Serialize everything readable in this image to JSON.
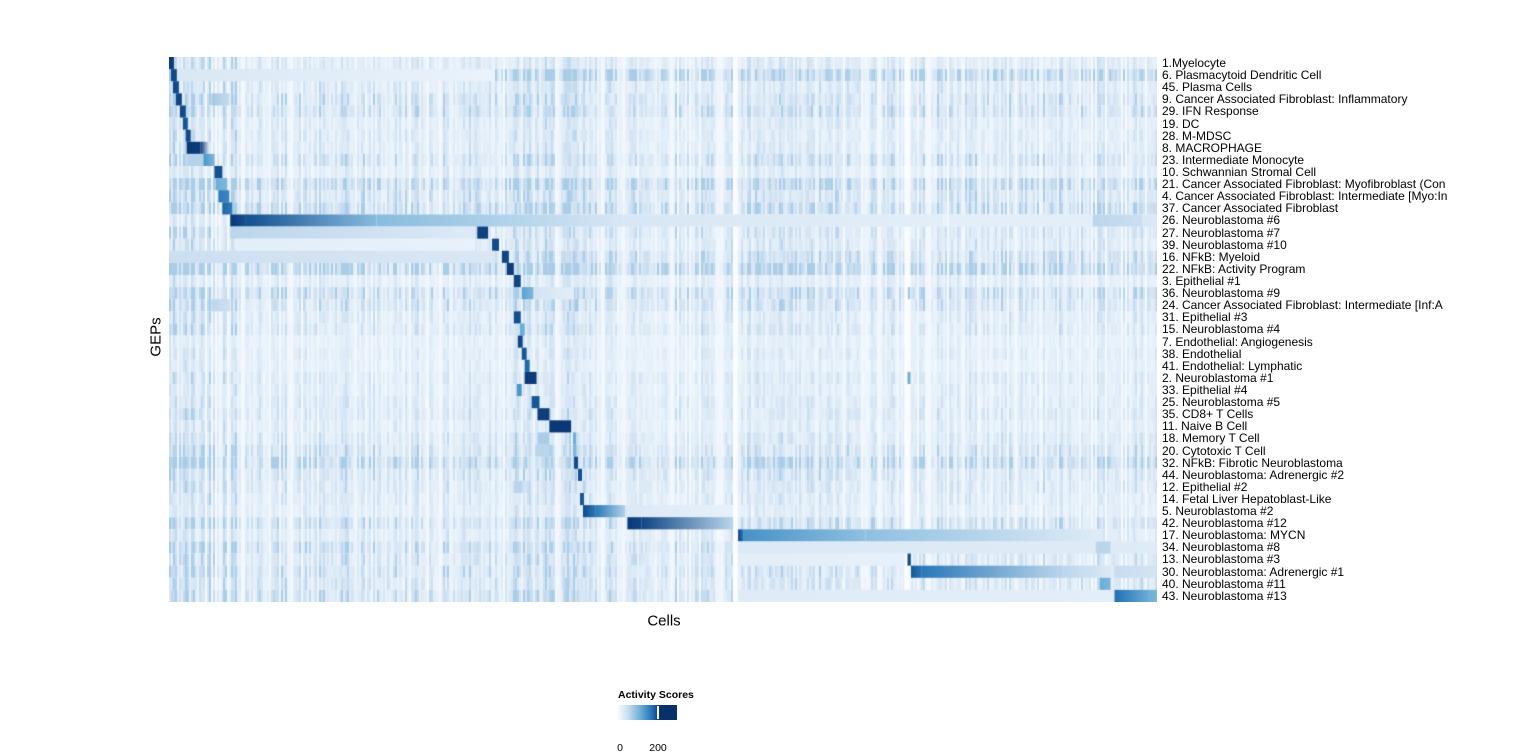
{
  "axes": {
    "x_label": "Cells",
    "y_label": "GEPs"
  },
  "legend": {
    "title": "Activity Scores",
    "tick_labels": [
      "0",
      "200"
    ]
  },
  "chart_data": {
    "type": "heatmap",
    "xlabel": "Cells",
    "ylabel": "GEPs",
    "legend_title": "Activity Scores",
    "colorbar_ticks": [
      0,
      200
    ],
    "colormap": [
      "#f7fbff",
      "#c6dbef",
      "#6baed6",
      "#2171b5",
      "#08306b"
    ],
    "intensity_scale": "segment t-values are fractions of max colormap (0 = white / score 0, 1 = darkest navy / score > 200)",
    "n_rows": 45,
    "rows": [
      {
        "label": "1.Myelocyte",
        "noise": 0.6,
        "segments": [
          [
            0.0,
            0.005,
            0.95,
            0.95
          ]
        ]
      },
      {
        "label": "6. Plasmacytoid Dendritic Cell",
        "noise": 1.6,
        "segments": [
          [
            0.002,
            0.008,
            0.9,
            0.9
          ],
          [
            0.008,
            0.33,
            0.15,
            0.06
          ]
        ]
      },
      {
        "label": "45. Plasma Cells",
        "noise": 0.7,
        "segments": [
          [
            0.004,
            0.01,
            0.9,
            0.9
          ]
        ]
      },
      {
        "label": "9. Cancer Associated Fibroblast: Inflammatory",
        "noise": 0.9,
        "segments": [
          [
            0.007,
            0.013,
            0.92,
            0.92
          ],
          [
            0.043,
            0.061,
            0.35,
            0.25
          ]
        ]
      },
      {
        "label": "29. IFN Response",
        "noise": 1.0,
        "segments": [
          [
            0.011,
            0.017,
            0.9,
            0.9
          ]
        ]
      },
      {
        "label": "19. DC",
        "noise": 0.6,
        "segments": [
          [
            0.014,
            0.019,
            0.85,
            0.85
          ]
        ]
      },
      {
        "label": "28. M-MDSC",
        "noise": 0.6,
        "segments": [
          [
            0.017,
            0.022,
            0.9,
            0.9
          ]
        ]
      },
      {
        "label": "8. MACROPHAGE",
        "noise": 0.6,
        "segments": [
          [
            0.018,
            0.032,
            0.97,
            0.95
          ],
          [
            0.032,
            0.041,
            0.95,
            0.1
          ]
        ]
      },
      {
        "label": "23. Intermediate Monocyte",
        "noise": 0.9,
        "segments": [
          [
            0.019,
            0.035,
            0.3,
            0.3
          ],
          [
            0.035,
            0.046,
            0.6,
            0.45
          ]
        ]
      },
      {
        "label": "10. Schwannian Stromal Cell",
        "noise": 0.5,
        "segments": [
          [
            0.046,
            0.054,
            0.88,
            0.88
          ]
        ]
      },
      {
        "label": "21. Cancer Associated Fibroblast: Myofibroblast (Con",
        "noise": 1.4,
        "segments": [
          [
            0.047,
            0.059,
            0.5,
            0.45
          ]
        ]
      },
      {
        "label": "4. Cancer Associated Fibroblast: Intermediate [Myo:In",
        "noise": 0.9,
        "segments": [
          [
            0.05,
            0.061,
            0.72,
            0.65
          ]
        ]
      },
      {
        "label": "37. Cancer Associated Fibroblast",
        "noise": 1.3,
        "segments": [
          [
            0.054,
            0.064,
            0.8,
            0.7
          ]
        ]
      },
      {
        "label": "26. Neuroblastoma #6",
        "noise": 0.4,
        "segments": [
          [
            0.062,
            0.077,
            0.97,
            0.88
          ],
          [
            0.077,
            0.21,
            0.88,
            0.42
          ],
          [
            0.21,
            0.46,
            0.42,
            0.16
          ],
          [
            0.46,
            0.78,
            0.16,
            0.1
          ],
          [
            0.79,
            0.935,
            0.1,
            0.1
          ],
          [
            0.935,
            0.985,
            0.28,
            0.22
          ],
          [
            0.985,
            1.0,
            0.15,
            0.15
          ]
        ]
      },
      {
        "label": "27. Neuroblastoma #7",
        "noise": 0.8,
        "segments": [
          [
            0.062,
            0.31,
            0.28,
            0.13
          ],
          [
            0.312,
            0.323,
            0.93,
            0.93
          ]
        ]
      },
      {
        "label": "39. Neuroblastoma #10",
        "noise": 0.7,
        "segments": [
          [
            0.066,
            0.31,
            0.1,
            0.07
          ],
          [
            0.327,
            0.334,
            0.9,
            0.9
          ]
        ]
      },
      {
        "label": "16. NFkB: Myeloid",
        "noise": 1.1,
        "segments": [
          [
            0.0,
            0.33,
            0.22,
            0.15
          ],
          [
            0.337,
            0.344,
            0.92,
            0.92
          ]
        ]
      },
      {
        "label": "22. NFkB: Activity Program",
        "noise": 1.6,
        "segments": [
          [
            0.342,
            0.349,
            0.95,
            0.95
          ]
        ]
      },
      {
        "label": "3. Epithelial #1",
        "noise": 0.5,
        "segments": [
          [
            0.349,
            0.356,
            0.92,
            0.92
          ]
        ]
      },
      {
        "label": "36. Neuroblastoma #9",
        "noise": 1.1,
        "segments": [
          [
            0.357,
            0.369,
            0.55,
            0.45
          ],
          [
            0.369,
            0.41,
            0.18,
            0.1
          ]
        ]
      },
      {
        "label": "24. Cancer Associated Fibroblast: Intermediate [Inf:A",
        "noise": 0.9,
        "segments": [
          [
            0.043,
            0.062,
            0.28,
            0.2
          ],
          [
            0.411,
            0.414,
            0.35,
            0.35
          ]
        ]
      },
      {
        "label": "31. Epithelial #3",
        "noise": 0.6,
        "segments": [
          [
            0.349,
            0.356,
            0.88,
            0.88
          ]
        ]
      },
      {
        "label": "15. Neuroblastoma #4",
        "noise": 0.7,
        "segments": [
          [
            0.355,
            0.36,
            0.5,
            0.5
          ]
        ]
      },
      {
        "label": "7. Endothelial: Angiogenesis",
        "noise": 0.4,
        "segments": [
          [
            0.353,
            0.358,
            0.92,
            0.92
          ]
        ]
      },
      {
        "label": "38. Endothelial",
        "noise": 0.5,
        "segments": [
          [
            0.357,
            0.362,
            0.85,
            0.85
          ]
        ]
      },
      {
        "label": "41. Endothelial: Lymphatic",
        "noise": 0.4,
        "segments": [
          [
            0.36,
            0.365,
            0.78,
            0.78
          ]
        ]
      },
      {
        "label": "2. Neuroblastoma #1",
        "noise": 0.6,
        "segments": [
          [
            0.36,
            0.372,
            0.96,
            0.96
          ]
        ]
      },
      {
        "label": "33. Epithelial #4",
        "noise": 0.5,
        "segments": [
          [
            0.352,
            0.357,
            0.6,
            0.6
          ]
        ]
      },
      {
        "label": "25. Neuroblastoma #5",
        "noise": 0.6,
        "segments": [
          [
            0.367,
            0.375,
            0.85,
            0.85
          ]
        ]
      },
      {
        "label": "35. CD8+ T Cells",
        "noise": 0.7,
        "segments": [
          [
            0.373,
            0.385,
            0.95,
            0.95
          ]
        ]
      },
      {
        "label": "11. Naive B Cell",
        "noise": 0.5,
        "segments": [
          [
            0.385,
            0.407,
            0.97,
            0.97
          ]
        ]
      },
      {
        "label": "18. Memory T Cell",
        "noise": 0.7,
        "segments": [
          [
            0.373,
            0.385,
            0.33,
            0.33
          ],
          [
            0.409,
            0.412,
            0.5,
            0.5
          ]
        ]
      },
      {
        "label": "20. Cytotoxic T Cell",
        "noise": 0.9,
        "segments": [
          [
            0.373,
            0.385,
            0.28,
            0.28
          ],
          [
            0.409,
            0.412,
            0.45,
            0.45
          ]
        ]
      },
      {
        "label": "32. NFkB: Fibrotic Neuroblastoma",
        "noise": 1.4,
        "segments": [
          [
            0.41,
            0.414,
            0.9,
            0.9
          ]
        ]
      },
      {
        "label": "44. Neuroblastoma: Adrenergic #2",
        "noise": 0.8,
        "segments": [
          [
            0.414,
            0.418,
            0.88,
            0.88
          ]
        ]
      },
      {
        "label": "12. Epithelial #2",
        "noise": 0.7,
        "segments": [
          [
            0.349,
            0.358,
            0.28,
            0.28
          ]
        ]
      },
      {
        "label": "14. Fetal Liver Hepatoblast-Like",
        "noise": 0.6,
        "segments": [
          [
            0.416,
            0.42,
            0.85,
            0.85
          ]
        ]
      },
      {
        "label": "5. Neuroblastoma #2",
        "noise": 0.5,
        "segments": [
          [
            0.419,
            0.432,
            0.9,
            0.72
          ],
          [
            0.432,
            0.462,
            0.72,
            0.3
          ],
          [
            0.462,
            0.571,
            0.14,
            0.08
          ]
        ]
      },
      {
        "label": "42. Neuroblastoma #12",
        "noise": 1.0,
        "segments": [
          [
            0.464,
            0.478,
            0.97,
            0.92
          ],
          [
            0.478,
            0.571,
            0.92,
            0.28
          ]
        ]
      },
      {
        "label": "17. Neuroblastoma: MYCN",
        "noise": 0.6,
        "segments": [
          [
            0.576,
            0.581,
            0.95,
            0.72
          ],
          [
            0.581,
            0.705,
            0.62,
            0.4
          ],
          [
            0.705,
            0.945,
            0.4,
            0.12
          ]
        ]
      },
      {
        "label": "34. Neuroblastoma #8",
        "noise": 1.0,
        "segments": [
          [
            0.576,
            1.0,
            0.14,
            0.12
          ],
          [
            0.938,
            0.953,
            0.28,
            0.28
          ]
        ]
      },
      {
        "label": "13. Neuroblastoma #3",
        "noise": 0.8,
        "segments": [
          [
            0.576,
            0.745,
            0.1,
            0.08
          ]
        ]
      },
      {
        "label": "30. Neuroblastoma: Adrenergic #1",
        "noise": 0.9,
        "segments": [
          [
            0.751,
            0.762,
            0.85,
            0.72
          ],
          [
            0.762,
            0.905,
            0.72,
            0.28
          ],
          [
            0.905,
            0.953,
            0.28,
            0.14
          ],
          [
            0.957,
            1.0,
            0.24,
            0.18
          ]
        ]
      },
      {
        "label": "40. Neuroblastoma #11",
        "noise": 0.8,
        "segments": [
          [
            0.942,
            0.953,
            0.5,
            0.45
          ]
        ]
      },
      {
        "label": "43. Neuroblastoma #13",
        "noise": 1.0,
        "segments": [
          [
            0.576,
            0.955,
            0.12,
            0.1
          ],
          [
            0.957,
            0.992,
            0.75,
            0.5
          ],
          [
            0.992,
            1.0,
            0.5,
            0.45
          ]
        ]
      }
    ],
    "column_gaps": [
      [
        0.5709,
        0.576
      ],
      [
        0.7442,
        0.7508
      ]
    ],
    "gap_overlays": [
      {
        "row": 20,
        "x0": 0.7478,
        "x1": 0.7502,
        "t": 0.35
      },
      {
        "row": 27,
        "x0": 0.7475,
        "x1": 0.7505,
        "t": 0.5
      },
      {
        "row": 42,
        "x0": 0.7475,
        "x1": 0.7508,
        "t": 0.9
      }
    ],
    "column_boost": [
      [
        0.0,
        0.068,
        1.7
      ],
      [
        0.295,
        0.42,
        1.25
      ]
    ]
  }
}
